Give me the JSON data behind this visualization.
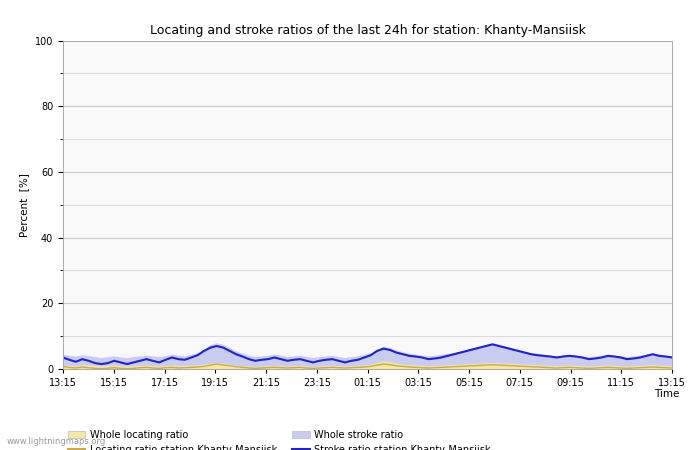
{
  "title": "Locating and stroke ratios of the last 24h for station: Khanty-Mansiisk",
  "xlabel": "Time",
  "ylabel": "Percent  [%]",
  "ylim": [
    0,
    100
  ],
  "yticks": [
    0,
    20,
    40,
    60,
    80,
    100
  ],
  "minor_yticks": [
    10,
    30,
    50,
    70,
    90
  ],
  "x_labels": [
    "13:15",
    "15:15",
    "17:15",
    "19:15",
    "21:15",
    "23:15",
    "01:15",
    "03:15",
    "05:15",
    "07:15",
    "09:15",
    "11:15",
    "13:15"
  ],
  "bg_color": "#ffffff",
  "plot_bg_color": "#f9f9f9",
  "grid_color": "#cccccc",
  "watermark": "www.lightningmaps.org",
  "whole_locating_fill_color": "#f5e6a0",
  "whole_stroke_fill_color": "#c8ccf0",
  "locating_line_color": "#ccaa44",
  "stroke_line_color": "#2222cc",
  "whole_locating_ratio": [
    1.2,
    1.1,
    1.0,
    1.3,
    1.2,
    1.1,
    1.0,
    1.1,
    1.2,
    1.0,
    0.9,
    1.0,
    1.1,
    1.2,
    1.0,
    0.9,
    1.1,
    1.2,
    1.0,
    1.1,
    1.2,
    1.3,
    1.5,
    1.8,
    2.0,
    1.8,
    1.5,
    1.2,
    1.0,
    0.9,
    0.8,
    0.9,
    1.0,
    1.1,
    1.0,
    0.9,
    1.0,
    1.1,
    0.9,
    0.8,
    0.9,
    1.0,
    1.1,
    1.0,
    0.9,
    1.0,
    1.1,
    1.2,
    1.5,
    2.0,
    2.5,
    2.2,
    1.8,
    1.5,
    1.3,
    1.2,
    1.1,
    1.0,
    1.1,
    1.2,
    1.3,
    1.4,
    1.5,
    1.6,
    1.7,
    1.8,
    1.9,
    2.0,
    1.9,
    1.8,
    1.7,
    1.6,
    1.5,
    1.4,
    1.3,
    1.2,
    1.1,
    1.0,
    1.1,
    1.2,
    1.1,
    1.0,
    0.9,
    1.0,
    1.1,
    1.2,
    1.1,
    1.0,
    0.9,
    1.0,
    1.1,
    1.2,
    1.3,
    1.2,
    1.1,
    1.0
  ],
  "whole_stroke_ratio": [
    4.5,
    4.2,
    4.0,
    4.3,
    4.1,
    3.8,
    3.5,
    3.8,
    4.0,
    3.7,
    3.5,
    3.8,
    4.0,
    4.2,
    4.0,
    3.8,
    4.1,
    4.5,
    4.2,
    4.0,
    4.5,
    5.0,
    6.0,
    7.5,
    8.0,
    7.5,
    6.5,
    5.5,
    4.8,
    4.2,
    3.8,
    4.0,
    4.2,
    4.5,
    4.2,
    3.8,
    4.0,
    4.2,
    3.8,
    3.5,
    3.8,
    4.0,
    4.2,
    3.8,
    3.5,
    3.8,
    4.0,
    4.5,
    5.0,
    6.0,
    7.0,
    6.5,
    5.8,
    5.2,
    4.8,
    4.5,
    4.2,
    4.0,
    4.2,
    4.5,
    4.8,
    5.0,
    5.5,
    6.0,
    6.5,
    7.0,
    7.5,
    8.0,
    7.5,
    7.0,
    6.5,
    6.0,
    5.5,
    5.0,
    4.8,
    4.5,
    4.2,
    4.0,
    4.2,
    4.5,
    4.2,
    4.0,
    3.8,
    4.0,
    4.2,
    4.5,
    4.2,
    4.0,
    3.8,
    4.0,
    4.2,
    4.5,
    4.8,
    4.5,
    4.2,
    4.0
  ],
  "locating_line": [
    0.8,
    0.5,
    0.3,
    0.6,
    0.4,
    0.2,
    0.1,
    0.2,
    0.4,
    0.2,
    0.1,
    0.2,
    0.4,
    0.5,
    0.3,
    0.2,
    0.4,
    0.5,
    0.3,
    0.4,
    0.5,
    0.6,
    0.8,
    1.2,
    1.5,
    1.2,
    1.0,
    0.7,
    0.5,
    0.3,
    0.2,
    0.3,
    0.4,
    0.5,
    0.4,
    0.3,
    0.4,
    0.5,
    0.3,
    0.2,
    0.3,
    0.4,
    0.5,
    0.4,
    0.3,
    0.4,
    0.5,
    0.6,
    0.8,
    1.2,
    1.5,
    1.3,
    1.0,
    0.8,
    0.6,
    0.5,
    0.4,
    0.3,
    0.4,
    0.5,
    0.6,
    0.7,
    0.8,
    0.9,
    1.0,
    1.1,
    1.2,
    1.3,
    1.2,
    1.1,
    1.0,
    0.9,
    0.8,
    0.7,
    0.6,
    0.5,
    0.4,
    0.3,
    0.4,
    0.5,
    0.4,
    0.3,
    0.2,
    0.3,
    0.4,
    0.5,
    0.4,
    0.3,
    0.2,
    0.3,
    0.4,
    0.5,
    0.6,
    0.5,
    0.4,
    0.3
  ],
  "stroke_line": [
    3.5,
    2.8,
    2.2,
    3.0,
    2.5,
    1.8,
    1.5,
    1.8,
    2.5,
    2.0,
    1.5,
    2.0,
    2.5,
    3.0,
    2.5,
    2.0,
    2.8,
    3.5,
    3.0,
    2.8,
    3.5,
    4.2,
    5.5,
    6.5,
    7.0,
    6.5,
    5.5,
    4.5,
    3.8,
    3.0,
    2.5,
    2.8,
    3.0,
    3.5,
    3.0,
    2.5,
    2.8,
    3.0,
    2.5,
    2.0,
    2.5,
    2.8,
    3.0,
    2.5,
    2.0,
    2.5,
    2.8,
    3.5,
    4.2,
    5.5,
    6.2,
    5.8,
    5.0,
    4.5,
    4.0,
    3.8,
    3.5,
    3.0,
    3.2,
    3.5,
    4.0,
    4.5,
    5.0,
    5.5,
    6.0,
    6.5,
    7.0,
    7.5,
    7.0,
    6.5,
    6.0,
    5.5,
    5.0,
    4.5,
    4.2,
    4.0,
    3.8,
    3.5,
    3.8,
    4.0,
    3.8,
    3.5,
    3.0,
    3.2,
    3.5,
    4.0,
    3.8,
    3.5,
    3.0,
    3.2,
    3.5,
    4.0,
    4.5,
    4.0,
    3.8,
    3.5
  ]
}
